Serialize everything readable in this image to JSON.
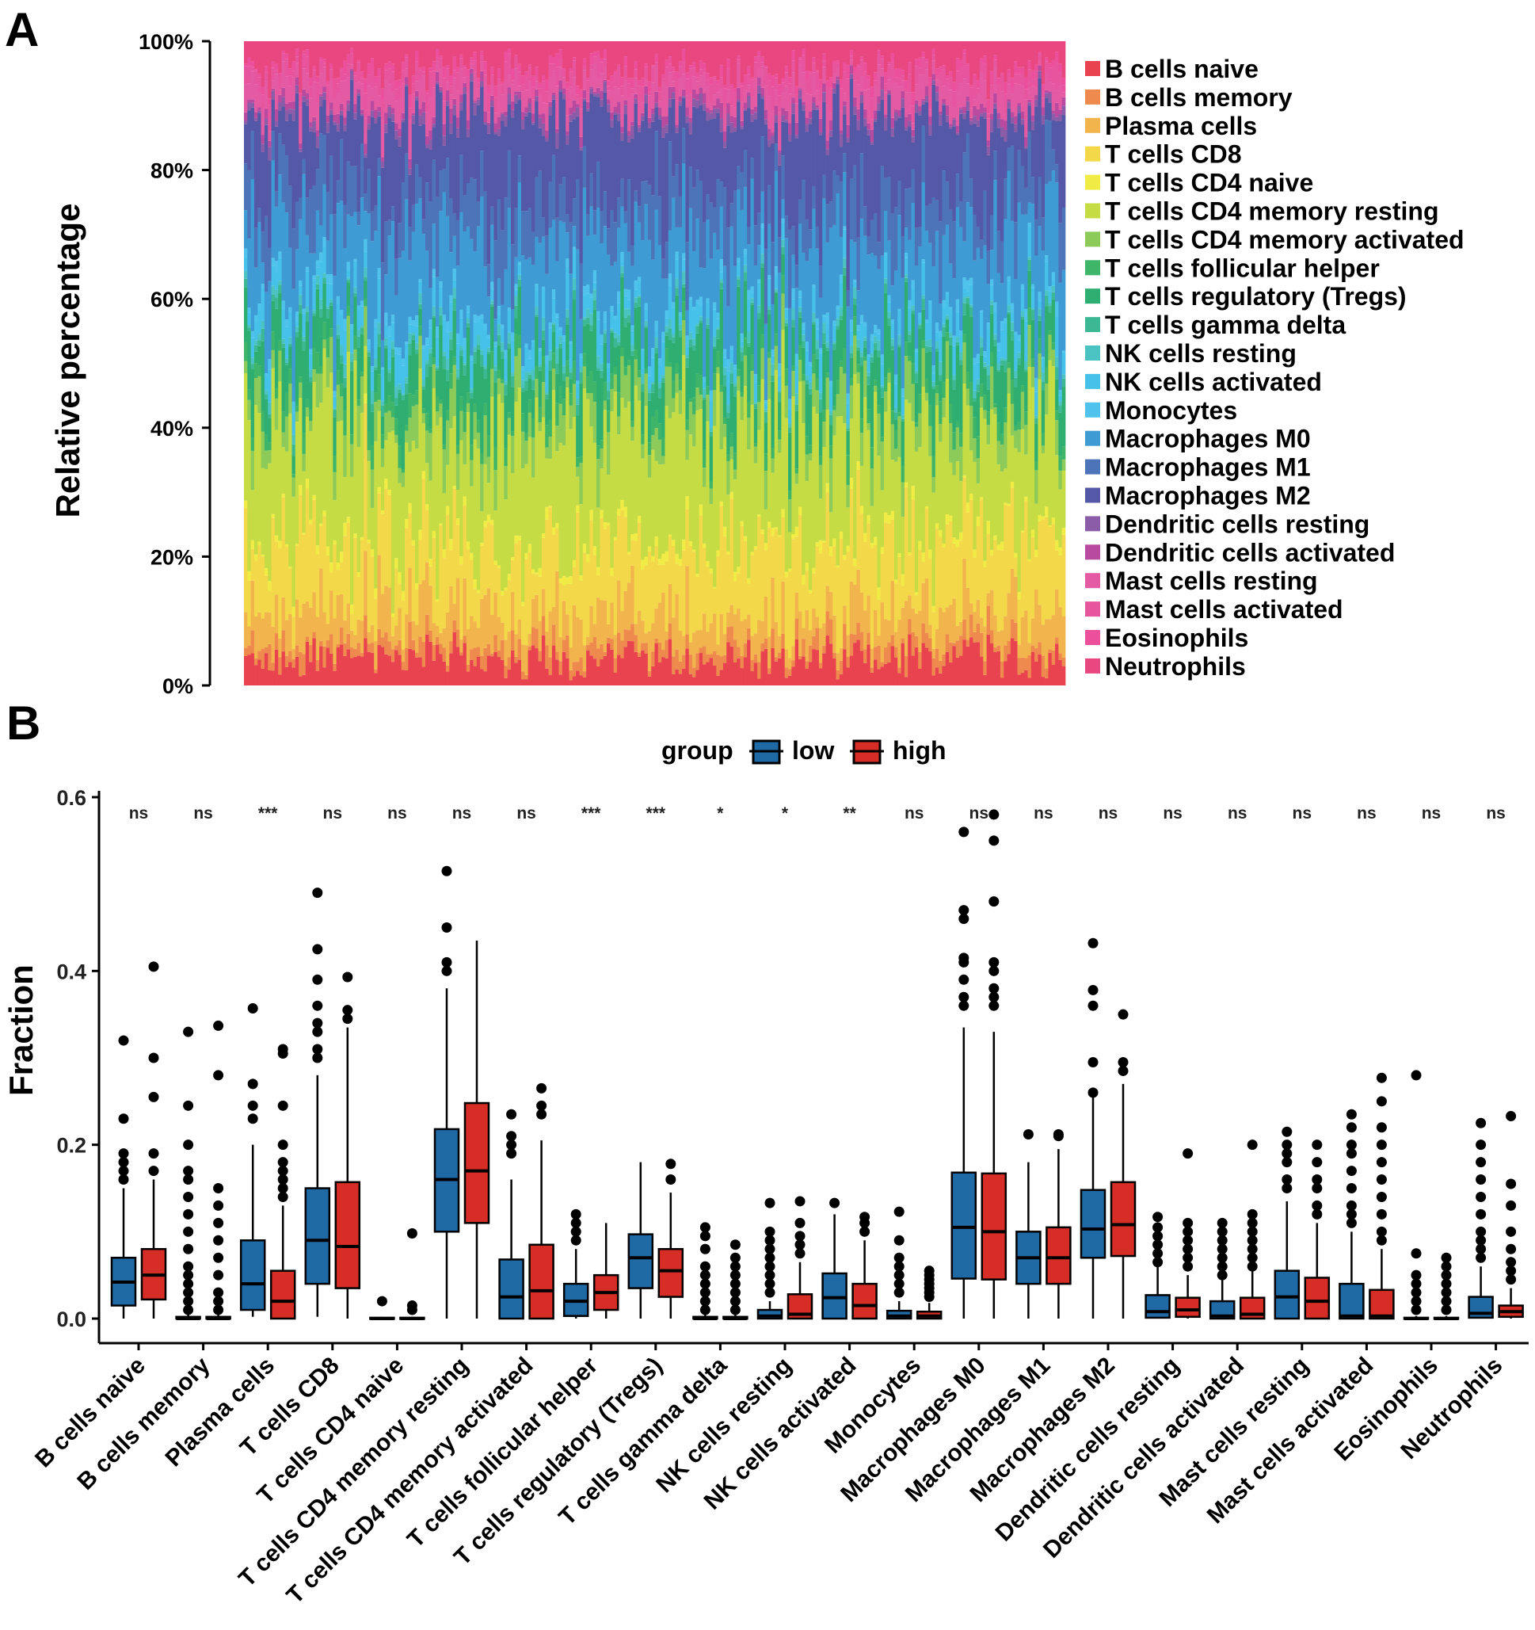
{
  "chart_data": [
    {
      "panel": "A",
      "type": "bar",
      "subtype": "stacked-100-percent",
      "ylabel": "Relative percentage",
      "yticks": [
        "0%",
        "20%",
        "40%",
        "60%",
        "80%",
        "100%"
      ],
      "ylim": [
        0,
        100
      ],
      "n_samples": 240,
      "legend_position": "right",
      "series": [
        {
          "name": "B cells naive",
          "color": "#E8434F",
          "mean_pct": 4
        },
        {
          "name": "B cells memory",
          "color": "#EF8A4E",
          "mean_pct": 2
        },
        {
          "name": "Plasma cells",
          "color": "#F2B54E",
          "mean_pct": 5
        },
        {
          "name": "T cells CD8",
          "color": "#F3D84A",
          "mean_pct": 10
        },
        {
          "name": "T cells CD4 naive",
          "color": "#F1EC45",
          "mean_pct": 1
        },
        {
          "name": "T cells CD4 memory resting",
          "color": "#C6DC45",
          "mean_pct": 17
        },
        {
          "name": "T cells CD4 memory activated",
          "color": "#8CCB5A",
          "mean_pct": 4
        },
        {
          "name": "T cells follicular helper",
          "color": "#3FB56A",
          "mean_pct": 2
        },
        {
          "name": "T cells regulatory (Tregs)",
          "color": "#2FAE72",
          "mean_pct": 7
        },
        {
          "name": "T cells gamma delta",
          "color": "#3DB894",
          "mean_pct": 1
        },
        {
          "name": "NK cells resting",
          "color": "#4CC3C3",
          "mean_pct": 1
        },
        {
          "name": "NK cells activated",
          "color": "#45C1EA",
          "mean_pct": 3
        },
        {
          "name": "Monocytes",
          "color": "#4FC3EC",
          "mean_pct": 1
        },
        {
          "name": "Macrophages M0",
          "color": "#3E9BD4",
          "mean_pct": 12
        },
        {
          "name": "Macrophages M1",
          "color": "#4D74B8",
          "mean_pct": 7
        },
        {
          "name": "Macrophages M2",
          "color": "#5558A6",
          "mean_pct": 11
        },
        {
          "name": "Dendritic cells resting",
          "color": "#8B5CA7",
          "mean_pct": 1
        },
        {
          "name": "Dendritic cells activated",
          "color": "#B84AA0",
          "mean_pct": 1
        },
        {
          "name": "Mast cells resting",
          "color": "#E45AA3",
          "mean_pct": 3
        },
        {
          "name": "Mast cells activated",
          "color": "#E8559F",
          "mean_pct": 2
        },
        {
          "name": "Eosinophils",
          "color": "#EC4F9B",
          "mean_pct": 1
        },
        {
          "name": "Neutrophils",
          "color": "#E8487F",
          "mean_pct": 4
        }
      ]
    },
    {
      "panel": "B",
      "type": "box",
      "ylabel": "Fraction",
      "yticks": [
        "0.0",
        "0.2",
        "0.4",
        "0.6"
      ],
      "ylim": [
        0,
        0.6
      ],
      "legend_title": "group",
      "legend_position": "top",
      "groups": [
        {
          "name": "low",
          "color": "#1F6AA5"
        },
        {
          "name": "high",
          "color": "#D62E26"
        }
      ],
      "categories": [
        "B cells naive",
        "B cells memory",
        "Plasma cells",
        "T cells CD8",
        "T cells CD4 naive",
        "T cells CD4 memory resting",
        "T cells CD4 memory activated",
        "T cells follicular helper",
        "T cells regulatory (Tregs)",
        "T cells gamma delta",
        "NK cells resting",
        "NK cells activated",
        "Monocytes",
        "Macrophages M0",
        "Macrophages M1",
        "Macrophages M2",
        "Dendritic cells resting",
        "Dendritic cells activated",
        "Mast cells resting",
        "Mast cells activated",
        "Eosinophils",
        "Neutrophils"
      ],
      "significance": [
        "ns",
        "ns",
        "***",
        "ns",
        "ns",
        "ns",
        "ns",
        "***",
        "***",
        "*",
        "*",
        "**",
        "ns",
        "ns",
        "ns",
        "ns",
        "ns",
        "ns",
        "ns",
        "ns",
        "ns",
        "ns"
      ],
      "boxes": [
        {
          "low": {
            "min": 0,
            "q1": 0.015,
            "median": 0.042,
            "q3": 0.07,
            "max": 0.15,
            "outliers": [
              0.16,
              0.17,
              0.18,
              0.19,
              0.23,
              0.32
            ]
          },
          "high": {
            "min": 0,
            "q1": 0.022,
            "median": 0.05,
            "q3": 0.08,
            "max": 0.16,
            "outliers": [
              0.17,
              0.19,
              0.255,
              0.3,
              0.405
            ]
          }
        },
        {
          "low": {
            "min": 0,
            "q1": 0,
            "median": 0,
            "q3": 0.002,
            "max": 0.005,
            "outliers": [
              0.01,
              0.02,
              0.03,
              0.04,
              0.05,
              0.06,
              0.08,
              0.1,
              0.12,
              0.14,
              0.16,
              0.17,
              0.2,
              0.245,
              0.33
            ]
          },
          "high": {
            "min": 0,
            "q1": 0,
            "median": 0,
            "q3": 0.002,
            "max": 0.005,
            "outliers": [
              0.01,
              0.02,
              0.03,
              0.05,
              0.07,
              0.09,
              0.11,
              0.13,
              0.15,
              0.28,
              0.337
            ]
          }
        },
        {
          "low": {
            "min": 0.002,
            "q1": 0.01,
            "median": 0.04,
            "q3": 0.09,
            "max": 0.2,
            "outliers": [
              0.23,
              0.245,
              0.27,
              0.357
            ]
          },
          "high": {
            "min": 0,
            "q1": 0,
            "median": 0.02,
            "q3": 0.055,
            "max": 0.13,
            "outliers": [
              0.14,
              0.15,
              0.16,
              0.17,
              0.18,
              0.2,
              0.245,
              0.305,
              0.31
            ]
          }
        },
        {
          "low": {
            "min": 0.002,
            "q1": 0.04,
            "median": 0.09,
            "q3": 0.15,
            "max": 0.28,
            "outliers": [
              0.3,
              0.31,
              0.33,
              0.34,
              0.36,
              0.39,
              0.425,
              0.49
            ]
          },
          "high": {
            "min": 0,
            "q1": 0.035,
            "median": 0.083,
            "q3": 0.157,
            "max": 0.335,
            "outliers": [
              0.345,
              0.355,
              0.393
            ]
          }
        },
        {
          "low": {
            "min": 0,
            "q1": 0,
            "median": 0,
            "q3": 0.001,
            "max": 0.002,
            "outliers": [
              0.02
            ]
          },
          "high": {
            "min": 0,
            "q1": 0,
            "median": 0,
            "q3": 0.001,
            "max": 0.002,
            "outliers": [
              0.01,
              0.015,
              0.098
            ]
          }
        },
        {
          "low": {
            "min": 0,
            "q1": 0.1,
            "median": 0.16,
            "q3": 0.218,
            "max": 0.38,
            "outliers": [
              0.4,
              0.41,
              0.45,
              0.515
            ]
          },
          "high": {
            "min": 0,
            "q1": 0.11,
            "median": 0.17,
            "q3": 0.248,
            "max": 0.435,
            "outliers": []
          }
        },
        {
          "low": {
            "min": 0,
            "q1": 0,
            "median": 0.025,
            "q3": 0.068,
            "max": 0.16,
            "outliers": [
              0.19,
              0.2,
              0.21,
              0.235
            ]
          },
          "high": {
            "min": 0,
            "q1": 0,
            "median": 0.032,
            "q3": 0.085,
            "max": 0.205,
            "outliers": [
              0.235,
              0.245,
              0.265
            ]
          }
        },
        {
          "low": {
            "min": 0,
            "q1": 0.003,
            "median": 0.02,
            "q3": 0.04,
            "max": 0.08,
            "outliers": [
              0.09,
              0.1,
              0.11,
              0.12
            ]
          },
          "high": {
            "min": 0,
            "q1": 0.01,
            "median": 0.03,
            "q3": 0.05,
            "max": 0.11,
            "outliers": []
          }
        },
        {
          "low": {
            "min": 0,
            "q1": 0.035,
            "median": 0.07,
            "q3": 0.097,
            "max": 0.18,
            "outliers": []
          },
          "high": {
            "min": 0,
            "q1": 0.025,
            "median": 0.055,
            "q3": 0.08,
            "max": 0.145,
            "outliers": [
              0.16,
              0.178
            ]
          }
        },
        {
          "low": {
            "min": 0,
            "q1": 0,
            "median": 0,
            "q3": 0.002,
            "max": 0.005,
            "outliers": [
              0.01,
              0.02,
              0.03,
              0.04,
              0.05,
              0.06,
              0.08,
              0.095,
              0.105
            ]
          },
          "high": {
            "min": 0,
            "q1": 0,
            "median": 0,
            "q3": 0.002,
            "max": 0.005,
            "outliers": [
              0.01,
              0.02,
              0.03,
              0.04,
              0.05,
              0.06,
              0.07,
              0.085
            ]
          }
        },
        {
          "low": {
            "min": 0,
            "q1": 0,
            "median": 0.003,
            "q3": 0.01,
            "max": 0.02,
            "outliers": [
              0.03,
              0.04,
              0.05,
              0.06,
              0.07,
              0.08,
              0.09,
              0.1,
              0.133
            ]
          },
          "high": {
            "min": 0,
            "q1": 0,
            "median": 0.005,
            "q3": 0.028,
            "max": 0.065,
            "outliers": [
              0.075,
              0.085,
              0.095,
              0.11,
              0.135
            ]
          }
        },
        {
          "low": {
            "min": 0,
            "q1": 0,
            "median": 0.024,
            "q3": 0.052,
            "max": 0.12,
            "outliers": [
              0.133
            ]
          },
          "high": {
            "min": 0,
            "q1": 0,
            "median": 0.015,
            "q3": 0.04,
            "max": 0.09,
            "outliers": [
              0.1,
              0.11,
              0.117
            ]
          }
        },
        {
          "low": {
            "min": 0,
            "q1": 0,
            "median": 0.003,
            "q3": 0.009,
            "max": 0.02,
            "outliers": [
              0.03,
              0.04,
              0.05,
              0.06,
              0.07,
              0.09,
              0.123
            ]
          },
          "high": {
            "min": 0,
            "q1": 0,
            "median": 0.003,
            "q3": 0.008,
            "max": 0.018,
            "outliers": [
              0.025,
              0.03,
              0.035,
              0.04,
              0.045,
              0.05,
              0.055
            ]
          }
        },
        {
          "low": {
            "min": 0,
            "q1": 0.046,
            "median": 0.105,
            "q3": 0.168,
            "max": 0.335,
            "outliers": [
              0.36,
              0.37,
              0.39,
              0.41,
              0.415,
              0.46,
              0.47,
              0.56
            ]
          },
          "high": {
            "min": 0,
            "q1": 0.045,
            "median": 0.1,
            "q3": 0.167,
            "max": 0.33,
            "outliers": [
              0.36,
              0.37,
              0.38,
              0.4,
              0.41,
              0.48,
              0.55,
              0.58
            ]
          }
        },
        {
          "low": {
            "min": 0,
            "q1": 0.04,
            "median": 0.07,
            "q3": 0.1,
            "max": 0.18,
            "outliers": [
              0.212
            ]
          },
          "high": {
            "min": 0,
            "q1": 0.04,
            "median": 0.07,
            "q3": 0.105,
            "max": 0.195,
            "outliers": [
              0.21,
              0.212
            ]
          }
        },
        {
          "low": {
            "min": 0,
            "q1": 0.07,
            "median": 0.103,
            "q3": 0.148,
            "max": 0.255,
            "outliers": [
              0.26,
              0.295,
              0.36,
              0.378,
              0.432
            ]
          },
          "high": {
            "min": 0,
            "q1": 0.072,
            "median": 0.108,
            "q3": 0.157,
            "max": 0.27,
            "outliers": [
              0.285,
              0.295,
              0.35
            ]
          }
        },
        {
          "low": {
            "min": 0,
            "q1": 0.001,
            "median": 0.008,
            "q3": 0.027,
            "max": 0.06,
            "outliers": [
              0.065,
              0.075,
              0.085,
              0.095,
              0.105,
              0.117
            ]
          },
          "high": {
            "min": 0,
            "q1": 0.002,
            "median": 0.01,
            "q3": 0.024,
            "max": 0.05,
            "outliers": [
              0.06,
              0.07,
              0.08,
              0.09,
              0.1,
              0.11,
              0.19
            ]
          }
        },
        {
          "low": {
            "min": 0,
            "q1": 0,
            "median": 0.003,
            "q3": 0.02,
            "max": 0.045,
            "outliers": [
              0.05,
              0.06,
              0.07,
              0.08,
              0.09,
              0.1,
              0.11
            ]
          },
          "high": {
            "min": 0,
            "q1": 0,
            "median": 0.005,
            "q3": 0.024,
            "max": 0.055,
            "outliers": [
              0.06,
              0.07,
              0.08,
              0.09,
              0.1,
              0.11,
              0.12,
              0.2
            ]
          }
        },
        {
          "low": {
            "min": 0,
            "q1": 0,
            "median": 0.025,
            "q3": 0.055,
            "max": 0.135,
            "outliers": [
              0.15,
              0.16,
              0.18,
              0.19,
              0.2,
              0.215
            ]
          },
          "high": {
            "min": 0,
            "q1": 0,
            "median": 0.02,
            "q3": 0.047,
            "max": 0.11,
            "outliers": [
              0.12,
              0.13,
              0.15,
              0.16,
              0.18,
              0.2
            ]
          }
        },
        {
          "low": {
            "min": 0,
            "q1": 0,
            "median": 0.003,
            "q3": 0.04,
            "max": 0.1,
            "outliers": [
              0.11,
              0.12,
              0.13,
              0.15,
              0.17,
              0.19,
              0.2,
              0.22,
              0.235
            ]
          },
          "high": {
            "min": 0,
            "q1": 0,
            "median": 0.003,
            "q3": 0.033,
            "max": 0.08,
            "outliers": [
              0.09,
              0.1,
              0.12,
              0.14,
              0.16,
              0.18,
              0.2,
              0.22,
              0.25,
              0.277
            ]
          }
        },
        {
          "low": {
            "min": 0,
            "q1": 0,
            "median": 0,
            "q3": 0.001,
            "max": 0.003,
            "outliers": [
              0.01,
              0.02,
              0.03,
              0.04,
              0.05,
              0.075,
              0.28
            ]
          },
          "high": {
            "min": 0,
            "q1": 0,
            "median": 0,
            "q3": 0.001,
            "max": 0.003,
            "outliers": [
              0.01,
              0.02,
              0.03,
              0.04,
              0.05,
              0.06,
              0.07
            ]
          }
        },
        {
          "low": {
            "min": 0,
            "q1": 0.001,
            "median": 0.006,
            "q3": 0.025,
            "max": 0.06,
            "outliers": [
              0.07,
              0.08,
              0.09,
              0.1,
              0.12,
              0.14,
              0.16,
              0.18,
              0.2,
              0.225
            ]
          },
          "high": {
            "min": 0,
            "q1": 0.002,
            "median": 0.008,
            "q3": 0.015,
            "max": 0.035,
            "outliers": [
              0.045,
              0.055,
              0.065,
              0.08,
              0.1,
              0.13,
              0.155,
              0.233
            ]
          }
        }
      ]
    }
  ]
}
